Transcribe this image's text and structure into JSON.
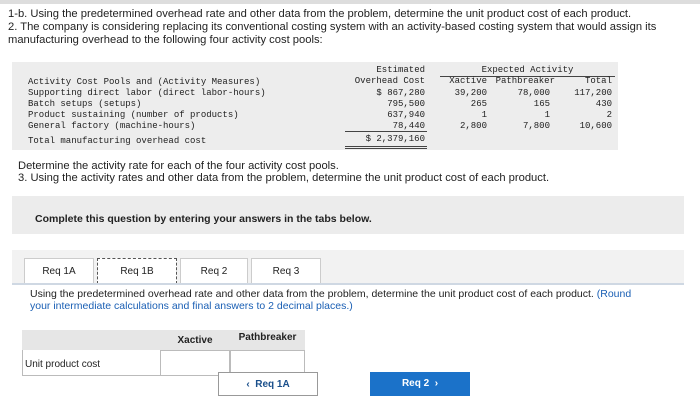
{
  "question": {
    "line_1b": "1-b. Using the predetermined overhead rate and other data from the problem, determine the unit product cost of each product.",
    "line_2": "2. The company is considering replacing its conventional costing system with an activity-based costing system that would assign its manufacturing overhead to the following four activity cost pools:",
    "table": {
      "col_estimated": [
        "Estimated",
        "Overhead Cost"
      ],
      "col_expected": "Expected Activity",
      "col_xactive": "Xactive",
      "col_pathbreaker": "Pathbreaker",
      "col_total": "Total",
      "row_header": "Activity Cost Pools and (Activity Measures)",
      "rows": [
        [
          "Supporting direct labor (direct labor-hours)",
          "$ 867,280",
          "39,200",
          "78,000",
          "117,200"
        ],
        [
          "Batch setups (setups)",
          "795,500",
          "265",
          "165",
          "430"
        ],
        [
          "Product sustaining (number of products)",
          "637,940",
          "1",
          "1",
          "2"
        ],
        [
          "General factory (machine-hours)",
          "78,440",
          "2,800",
          "7,800",
          "10,600"
        ]
      ],
      "total_row": [
        "Total manufacturing overhead cost",
        "$ 2,379,160"
      ]
    },
    "line_det": "Determine the activity rate for each of the four activity cost pools.",
    "line_3": "3. Using the activity rates and other data from the problem, determine the unit product cost of each product."
  },
  "panel": {
    "banner": "Complete this question by entering your answers in the tabs below.",
    "tabs": [
      "Req 1A",
      "Req 1B",
      "Req 2",
      "Req 3"
    ],
    "instruction": "Using the predetermined overhead rate and other data from the problem, determine the unit product cost of each product.",
    "instruction_note": "(Round your intermediate calculations and final answers to 2 decimal places.)",
    "answer_headers": [
      "Xactive",
      "Pathbreaker"
    ],
    "answer_row": "Unit product cost",
    "prev_button": "Req 1A",
    "next_button": "Req 2"
  }
}
